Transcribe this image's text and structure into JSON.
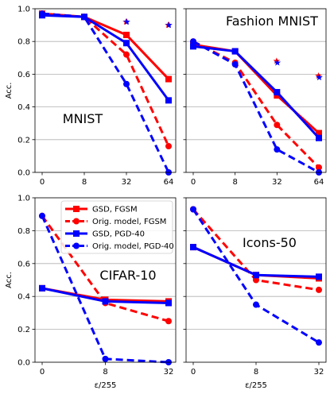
{
  "colors": {
    "red": "#ff0000",
    "blue": "#0000ff",
    "grid": "#b0b0b0"
  },
  "legend": {
    "placement": "upper-left of bottom-left panel",
    "entries": [
      {
        "label": "GSD, FGSM",
        "color": "#ff0000",
        "style": "solid",
        "marker": "square"
      },
      {
        "label": "Orig. model, FGSM",
        "color": "#ff0000",
        "style": "dashed",
        "marker": "circle"
      },
      {
        "label": "GSD, PGD-40",
        "color": "#0000ff",
        "style": "solid",
        "marker": "square"
      },
      {
        "label": "Orig. model, PGD-40",
        "color": "#0000ff",
        "style": "dashed",
        "marker": "circle"
      }
    ]
  },
  "chart_data": [
    {
      "type": "line",
      "title": "MNIST",
      "ylabel": "Acc.",
      "xlabel": "",
      "ylim": [
        0,
        1.0
      ],
      "yticks": [
        "0.0",
        "0.2",
        "0.4",
        "0.6",
        "0.8",
        "1.0"
      ],
      "categories": [
        "0",
        "8",
        "32",
        "64"
      ],
      "grid": "y",
      "series": [
        {
          "name": "GSD, FGSM",
          "values": [
            0.97,
            0.95,
            0.84,
            0.57
          ]
        },
        {
          "name": "Orig. model, FGSM",
          "values": [
            0.97,
            0.95,
            0.72,
            0.16
          ]
        },
        {
          "name": "GSD, PGD-40",
          "values": [
            0.96,
            0.95,
            0.79,
            0.44
          ]
        },
        {
          "name": "Orig. model, PGD-40",
          "values": [
            0.97,
            0.95,
            0.54,
            0.0
          ]
        }
      ],
      "stars": [
        {
          "x": "32",
          "y": 0.92,
          "color": "#ff0000"
        },
        {
          "x": "32",
          "y": 0.92,
          "color": "#0000ff"
        },
        {
          "x": "64",
          "y": 0.9,
          "color": "#ff0000"
        },
        {
          "x": "64",
          "y": 0.9,
          "color": "#0000ff"
        }
      ]
    },
    {
      "type": "line",
      "title": "Fashion MNIST",
      "ylabel": "",
      "xlabel": "",
      "ylim": [
        0,
        1.0
      ],
      "yticks": [
        "",
        "",
        "",
        "",
        "",
        ""
      ],
      "categories": [
        "0",
        "8",
        "32",
        "64"
      ],
      "grid": "y",
      "series": [
        {
          "name": "GSD, FGSM",
          "values": [
            0.78,
            0.74,
            0.47,
            0.24
          ]
        },
        {
          "name": "Orig. model, FGSM",
          "values": [
            0.8,
            0.67,
            0.29,
            0.03
          ]
        },
        {
          "name": "GSD, PGD-40",
          "values": [
            0.77,
            0.74,
            0.49,
            0.21
          ]
        },
        {
          "name": "Orig. model, PGD-40",
          "values": [
            0.8,
            0.66,
            0.14,
            0.0
          ]
        }
      ],
      "stars": [
        {
          "x": "32",
          "y": 0.68,
          "color": "#ff0000"
        },
        {
          "x": "32",
          "y": 0.67,
          "color": "#0000ff"
        },
        {
          "x": "64",
          "y": 0.59,
          "color": "#ff0000"
        },
        {
          "x": "64",
          "y": 0.58,
          "color": "#0000ff"
        }
      ]
    },
    {
      "type": "line",
      "title": "CIFAR-10",
      "ylabel": "Acc.",
      "xlabel": "ε/255",
      "ylim": [
        0,
        1.0
      ],
      "yticks": [
        "0.0",
        "0.2",
        "0.4",
        "0.6",
        "0.8",
        "1.0"
      ],
      "categories": [
        "0",
        "8",
        "32"
      ],
      "grid": "y",
      "series": [
        {
          "name": "GSD, FGSM",
          "values": [
            0.45,
            0.38,
            0.37
          ]
        },
        {
          "name": "Orig. model, FGSM",
          "values": [
            0.89,
            0.36,
            0.25
          ]
        },
        {
          "name": "GSD, PGD-40",
          "values": [
            0.45,
            0.37,
            0.36
          ]
        },
        {
          "name": "Orig. model, PGD-40",
          "values": [
            0.89,
            0.02,
            0.0
          ]
        }
      ],
      "stars": []
    },
    {
      "type": "line",
      "title": "Icons-50",
      "ylabel": "",
      "xlabel": "ε/255",
      "ylim": [
        0,
        1.0
      ],
      "yticks": [
        "",
        "",
        "",
        "",
        "",
        ""
      ],
      "categories": [
        "0",
        "8",
        "32"
      ],
      "grid": "y",
      "series": [
        {
          "name": "GSD, FGSM",
          "values": [
            0.7,
            0.53,
            0.51
          ]
        },
        {
          "name": "Orig. model, FGSM",
          "values": [
            0.93,
            0.5,
            0.44
          ]
        },
        {
          "name": "GSD, PGD-40",
          "values": [
            0.7,
            0.53,
            0.52
          ]
        },
        {
          "name": "Orig. model, PGD-40",
          "values": [
            0.93,
            0.35,
            0.12
          ]
        }
      ],
      "stars": []
    }
  ]
}
